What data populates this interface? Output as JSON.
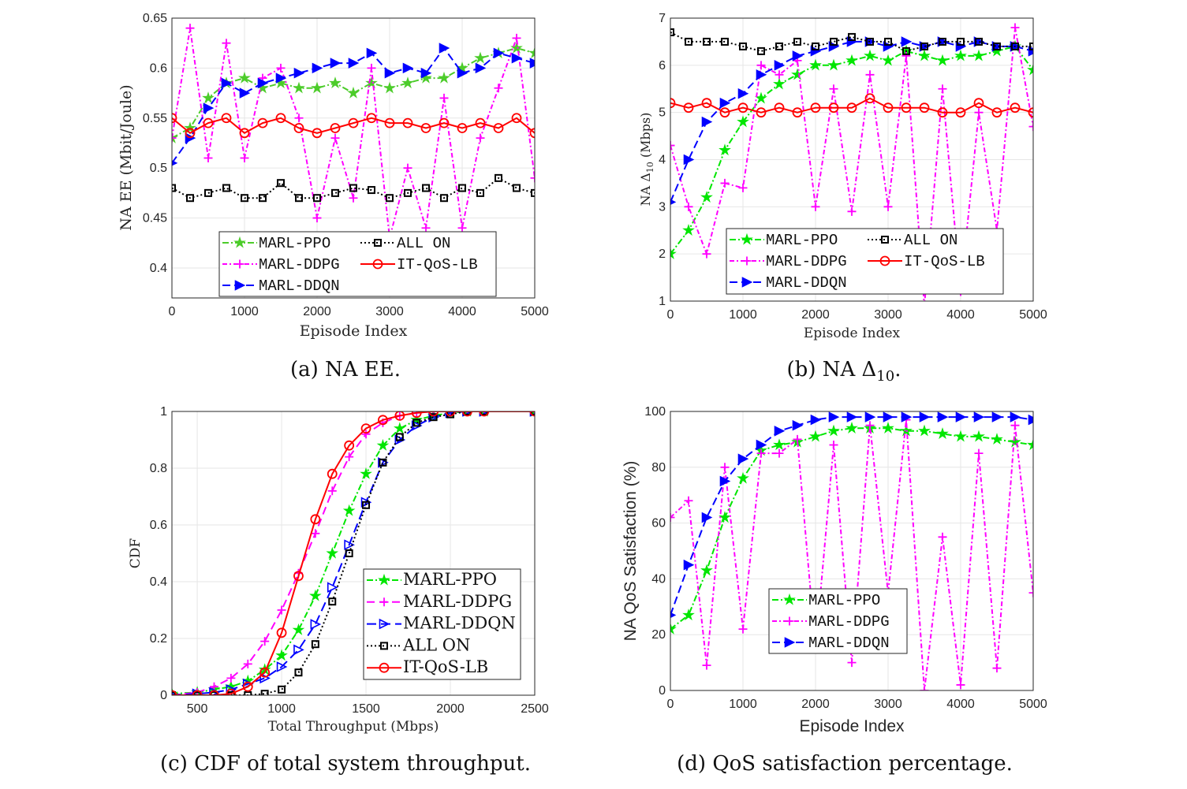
{
  "captions": {
    "a": "(a) NA EE.",
    "b_pre": "(b) NA Δ",
    "b_sub": "10",
    "b_post": ".",
    "c": "(c) CDF of total system throughput.",
    "d": "(d) QoS satisfaction percentage."
  },
  "colors": {
    "ppo": "#4ccc2a",
    "ppo_bright": "#00e600",
    "ddpg": "#ff00ff",
    "ddqn": "#0000ff",
    "allon": "#000000",
    "itqos": "#ff0000"
  },
  "chart_data": [
    {
      "type": "line",
      "title": "",
      "xlabel": "Episode Index",
      "ylabel": "NA EE (Mbit/Joule)",
      "xlim": [
        0,
        5000
      ],
      "ylim": [
        0.37,
        0.65
      ],
      "grid": true,
      "legend": "bottom-center, 2 columns",
      "xticks": [
        0,
        1000,
        2000,
        3000,
        4000,
        5000
      ],
      "yticks": [
        0.4,
        0.45,
        0.5,
        0.55,
        0.6,
        0.65
      ],
      "x": [
        0,
        250,
        500,
        750,
        1000,
        1250,
        1500,
        1750,
        2000,
        2250,
        2500,
        2750,
        3000,
        3250,
        3500,
        3750,
        4000,
        4250,
        4500,
        4750,
        5000
      ],
      "series": [
        {
          "name": "MARL-PPO",
          "values": [
            0.53,
            0.54,
            0.57,
            0.585,
            0.59,
            0.58,
            0.585,
            0.58,
            0.58,
            0.585,
            0.575,
            0.585,
            0.58,
            0.585,
            0.59,
            0.59,
            0.6,
            0.61,
            0.615,
            0.62,
            0.615
          ]
        },
        {
          "name": "MARL-DDPG",
          "values": [
            0.53,
            0.64,
            0.51,
            0.625,
            0.51,
            0.59,
            0.6,
            0.55,
            0.45,
            0.53,
            0.47,
            0.6,
            0.43,
            0.5,
            0.44,
            0.57,
            0.44,
            0.53,
            0.58,
            0.63,
            0.49
          ]
        },
        {
          "name": "MARL-DDQN",
          "values": [
            0.505,
            0.53,
            0.56,
            0.585,
            0.575,
            0.585,
            0.59,
            0.595,
            0.6,
            0.605,
            0.605,
            0.615,
            0.595,
            0.6,
            0.595,
            0.62,
            0.595,
            0.6,
            0.615,
            0.61,
            0.605
          ]
        },
        {
          "name": "ALL ON",
          "values": [
            0.48,
            0.47,
            0.475,
            0.48,
            0.47,
            0.47,
            0.485,
            0.47,
            0.47,
            0.475,
            0.48,
            0.478,
            0.47,
            0.475,
            0.48,
            0.47,
            0.48,
            0.475,
            0.49,
            0.48,
            0.475
          ]
        },
        {
          "name": "IT-QoS-LB",
          "values": [
            0.55,
            0.535,
            0.545,
            0.55,
            0.535,
            0.545,
            0.55,
            0.54,
            0.535,
            0.54,
            0.545,
            0.55,
            0.545,
            0.545,
            0.54,
            0.545,
            0.54,
            0.545,
            0.54,
            0.55,
            0.535
          ]
        }
      ]
    },
    {
      "type": "line",
      "title": "",
      "xlabel": "Episode Index",
      "ylabel_pre": "NA Δ",
      "ylabel_sub": "10",
      "ylabel_post": " (Mbps)",
      "xlim": [
        0,
        5000
      ],
      "ylim": [
        1,
        7
      ],
      "grid": true,
      "legend": "bottom-center, 2 columns",
      "xticks": [
        0,
        1000,
        2000,
        3000,
        4000,
        5000
      ],
      "yticks": [
        1,
        2,
        3,
        4,
        5,
        6,
        7
      ],
      "x": [
        0,
        250,
        500,
        750,
        1000,
        1250,
        1500,
        1750,
        2000,
        2250,
        2500,
        2750,
        3000,
        3250,
        3500,
        3750,
        4000,
        4250,
        4500,
        4750,
        5000
      ],
      "series": [
        {
          "name": "MARL-PPO",
          "values": [
            2.0,
            2.5,
            3.2,
            4.2,
            4.8,
            5.3,
            5.6,
            5.8,
            6.0,
            6.0,
            6.1,
            6.2,
            6.1,
            6.3,
            6.2,
            6.1,
            6.2,
            6.2,
            6.3,
            6.4,
            5.9
          ]
        },
        {
          "name": "MARL-DDPG",
          "values": [
            4.3,
            3.0,
            2.0,
            3.5,
            3.4,
            6.0,
            5.8,
            6.1,
            3.0,
            5.5,
            2.9,
            5.8,
            3.0,
            6.2,
            0.9,
            5.5,
            1.2,
            5.0,
            2.5,
            6.8,
            4.7
          ]
        },
        {
          "name": "MARL-DDQN",
          "values": [
            3.1,
            4.0,
            4.8,
            5.2,
            5.4,
            5.8,
            6.0,
            6.2,
            6.3,
            6.4,
            6.5,
            6.5,
            6.4,
            6.5,
            6.4,
            6.5,
            6.4,
            6.5,
            6.4,
            6.4,
            6.3
          ]
        },
        {
          "name": "ALL ON",
          "values": [
            6.7,
            6.5,
            6.5,
            6.5,
            6.4,
            6.3,
            6.4,
            6.5,
            6.4,
            6.5,
            6.6,
            6.5,
            6.5,
            6.3,
            6.4,
            6.5,
            6.5,
            6.5,
            6.4,
            6.4,
            6.4
          ]
        },
        {
          "name": "IT-QoS-LB",
          "values": [
            5.2,
            5.1,
            5.2,
            5.0,
            5.1,
            5.0,
            5.1,
            5.0,
            5.1,
            5.1,
            5.1,
            5.3,
            5.1,
            5.1,
            5.1,
            5.0,
            5.0,
            5.2,
            5.0,
            5.1,
            5.0
          ]
        }
      ]
    },
    {
      "type": "line",
      "title": "",
      "xlabel": "Total Throughput (Mbps)",
      "ylabel": "CDF",
      "xlim": [
        350,
        2500
      ],
      "ylim": [
        0,
        1
      ],
      "grid": true,
      "legend": "right-center",
      "xticks": [
        500,
        1000,
        1500,
        2000,
        2500
      ],
      "yticks": [
        0,
        0.2,
        0.4,
        0.6,
        0.8,
        1
      ],
      "x": [
        350,
        500,
        600,
        700,
        800,
        900,
        1000,
        1100,
        1200,
        1300,
        1400,
        1500,
        1600,
        1700,
        1800,
        1900,
        2000,
        2100,
        2200,
        2500
      ],
      "series": [
        {
          "name": "MARL-PPO",
          "values": [
            0.005,
            0.01,
            0.02,
            0.03,
            0.05,
            0.09,
            0.14,
            0.23,
            0.35,
            0.5,
            0.65,
            0.78,
            0.88,
            0.94,
            0.97,
            0.985,
            0.995,
            1,
            1,
            1
          ]
        },
        {
          "name": "MARL-DDPG",
          "values": [
            0,
            0.01,
            0.03,
            0.06,
            0.11,
            0.19,
            0.3,
            0.43,
            0.57,
            0.72,
            0.84,
            0.92,
            0.96,
            0.985,
            0.995,
            1,
            1,
            1,
            1,
            1
          ]
        },
        {
          "name": "MARL-DDQN",
          "values": [
            0,
            0.005,
            0.01,
            0.02,
            0.04,
            0.06,
            0.1,
            0.16,
            0.25,
            0.38,
            0.53,
            0.68,
            0.82,
            0.9,
            0.95,
            0.98,
            0.995,
            1,
            1,
            1
          ]
        },
        {
          "name": "ALL ON",
          "values": [
            0,
            0,
            0,
            0,
            0,
            0.005,
            0.02,
            0.08,
            0.18,
            0.33,
            0.5,
            0.67,
            0.82,
            0.91,
            0.96,
            0.98,
            0.99,
            1,
            1,
            1
          ]
        },
        {
          "name": "IT-QoS-LB",
          "values": [
            0,
            0,
            0,
            0.005,
            0.03,
            0.08,
            0.22,
            0.42,
            0.62,
            0.78,
            0.88,
            0.94,
            0.97,
            0.985,
            0.995,
            1,
            1,
            1,
            1,
            1
          ]
        }
      ]
    },
    {
      "type": "line",
      "title": "",
      "xlabel": "Episode Index",
      "ylabel": "NA QoS Satisfaction (%)",
      "xlim": [
        0,
        5000
      ],
      "ylim": [
        0,
        100
      ],
      "grid": true,
      "legend": "bottom-center",
      "xticks": [
        0,
        1000,
        2000,
        3000,
        4000,
        5000
      ],
      "yticks": [
        0,
        20,
        40,
        60,
        80,
        100
      ],
      "x": [
        0,
        250,
        500,
        750,
        1000,
        1250,
        1500,
        1750,
        2000,
        2250,
        2500,
        2750,
        3000,
        3250,
        3500,
        3750,
        4000,
        4250,
        4500,
        4750,
        5000
      ],
      "series": [
        {
          "name": "MARL-PPO",
          "values": [
            22,
            27,
            43,
            62,
            76,
            86,
            88,
            89,
            91,
            93,
            94,
            94,
            94,
            93,
            93,
            92,
            91,
            91,
            90,
            89,
            88
          ]
        },
        {
          "name": "MARL-DDPG",
          "values": [
            62,
            68,
            9,
            80,
            22,
            85,
            85,
            90,
            15,
            88,
            10,
            95,
            35,
            97,
            0,
            55,
            2,
            85,
            8,
            95,
            35
          ]
        },
        {
          "name": "MARL-DDQN",
          "values": [
            27,
            45,
            62,
            75,
            83,
            88,
            93,
            95,
            97,
            98,
            98,
            98,
            98,
            98,
            98,
            98,
            98,
            98,
            98,
            98,
            97
          ]
        }
      ]
    }
  ]
}
